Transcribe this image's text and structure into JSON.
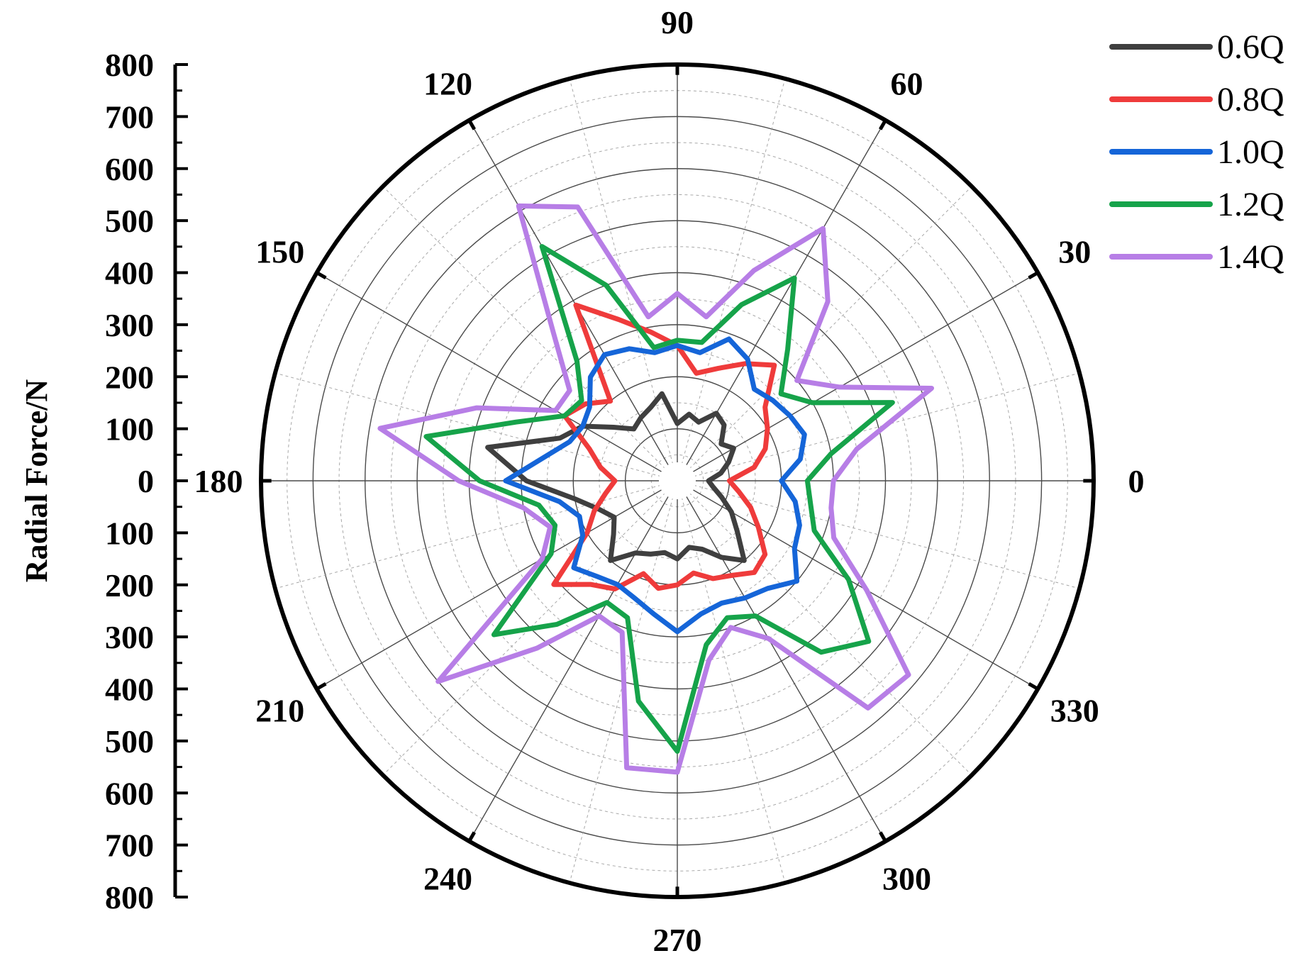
{
  "chart_data": {
    "type": "polar-line",
    "ylabel": "Radial Force/N",
    "rlim": [
      0,
      800
    ],
    "r_ticks": [
      0,
      100,
      200,
      300,
      400,
      500,
      600,
      700,
      800
    ],
    "angle_ticks": [
      0,
      30,
      60,
      90,
      120,
      150,
      180,
      210,
      240,
      270,
      300,
      330
    ],
    "grid": true,
    "legend_position": "top-right",
    "series": [
      {
        "name": "0.6Q",
        "color": "#3f3f3f",
        "angles": [
          0,
          10,
          20,
          30,
          40,
          50,
          60,
          70,
          80,
          90,
          100,
          110,
          120,
          130,
          140,
          150,
          160,
          170,
          180,
          190,
          200,
          210,
          220,
          230,
          240,
          250,
          260,
          270,
          280,
          290,
          300,
          310,
          320,
          330,
          340,
          350
        ],
        "r": [
          60,
          85,
          105,
          125,
          110,
          140,
          150,
          120,
          130,
          110,
          170,
          150,
          140,
          130,
          160,
          210,
          240,
          370,
          290,
          200,
          160,
          140,
          160,
          200,
          160,
          150,
          140,
          150,
          130,
          140,
          170,
          200,
          150,
          120,
          90,
          70
        ]
      },
      {
        "name": "0.8Q",
        "color": "#ef3b3b",
        "angles": [
          0,
          10,
          20,
          30,
          40,
          50,
          60,
          70,
          80,
          90,
          100,
          110,
          120,
          130,
          140,
          150,
          160,
          170,
          180,
          190,
          200,
          210,
          220,
          230,
          240,
          250,
          260,
          270,
          280,
          290,
          300,
          310,
          320,
          330,
          340,
          350
        ],
        "r": [
          100,
          150,
          180,
          200,
          220,
          290,
          260,
          230,
          210,
          260,
          290,
          330,
          390,
          200,
          230,
          250,
          180,
          150,
          120,
          140,
          170,
          200,
          310,
          260,
          240,
          190,
          210,
          200,
          180,
          200,
          210,
          230,
          220,
          180,
          150,
          120
        ]
      },
      {
        "name": "1.0Q",
        "color": "#1565d8",
        "angles": [
          0,
          10,
          20,
          30,
          40,
          50,
          60,
          70,
          80,
          90,
          100,
          110,
          120,
          130,
          140,
          150,
          160,
          170,
          180,
          190,
          200,
          210,
          220,
          230,
          240,
          250,
          260,
          270,
          280,
          290,
          300,
          310,
          320,
          330,
          340,
          350
        ],
        "r": [
          200,
          240,
          260,
          250,
          240,
          230,
          270,
          290,
          250,
          260,
          250,
          270,
          280,
          260,
          220,
          210,
          220,
          260,
          330,
          230,
          200,
          210,
          260,
          240,
          230,
          240,
          260,
          290,
          260,
          250,
          260,
          270,
          300,
          260,
          250,
          230
        ]
      },
      {
        "name": "1.2Q",
        "color": "#16a34a",
        "angles": [
          0,
          10,
          20,
          30,
          40,
          50,
          60,
          70,
          80,
          90,
          100,
          110,
          120,
          130,
          140,
          150,
          160,
          170,
          180,
          190,
          200,
          210,
          220,
          230,
          240,
          250,
          260,
          270,
          280,
          290,
          300,
          310,
          320,
          330,
          340,
          350
        ],
        "r": [
          250,
          300,
          440,
          300,
          260,
          330,
          450,
          360,
          270,
          270,
          260,
          400,
          520,
          300,
          240,
          250,
          330,
          490,
          380,
          270,
          250,
          280,
          460,
          360,
          270,
          280,
          430,
          520,
          320,
          280,
          300,
          430,
          480,
          380,
          280,
          260
        ]
      },
      {
        "name": "1.4Q",
        "color": "#b77ee6",
        "angles": [
          0,
          10,
          20,
          30,
          40,
          50,
          60,
          70,
          80,
          90,
          100,
          110,
          120,
          130,
          140,
          150,
          160,
          170,
          180,
          190,
          200,
          210,
          220,
          230,
          240,
          250,
          260,
          270,
          280,
          290,
          300,
          310,
          320,
          330,
          340,
          350
        ],
        "r": [
          300,
          350,
          520,
          360,
          300,
          450,
          560,
          430,
          320,
          360,
          320,
          560,
          610,
          370,
          270,
          270,
          410,
          580,
          420,
          300,
          260,
          300,
          600,
          420,
          300,
          310,
          560,
          560,
          350,
          300,
          350,
          570,
          580,
          420,
          320,
          300
        ]
      }
    ]
  }
}
